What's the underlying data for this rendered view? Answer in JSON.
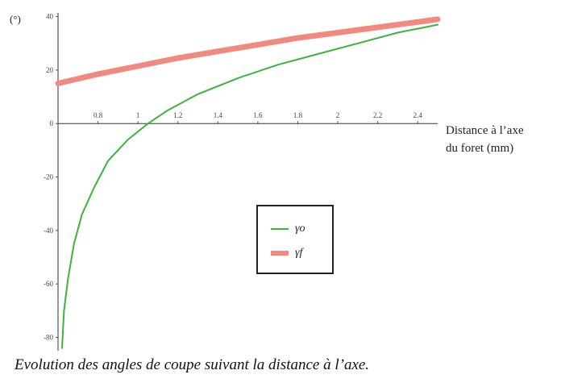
{
  "chart_data": {
    "type": "line",
    "ylabel": "(°)",
    "xlabel_lines": [
      "Distance à l’axe",
      "du foret (mm)"
    ],
    "caption": "Evolution des angles de coupe suivant la distance à l’axe.",
    "xlim": [
      0.6,
      2.5
    ],
    "ylim": [
      -85,
      42
    ],
    "x_ticks": [
      0.8,
      1,
      1.2,
      1.4,
      1.6,
      1.8,
      2,
      2.2,
      2.4
    ],
    "x_tick_labels": [
      "0.8",
      "1",
      "1.2",
      "1.4",
      "1.6",
      "1.8",
      "2",
      "2.2",
      "2.4"
    ],
    "y_ticks": [
      40,
      20,
      0,
      -20,
      -40,
      -60,
      -80
    ],
    "y_tick_labels": [
      "40",
      "20",
      "0",
      "-20",
      "-40",
      "-60",
      "-80"
    ],
    "series": [
      {
        "name": "γo",
        "color": "#3cb43c",
        "x": [
          0.62,
          0.63,
          0.65,
          0.68,
          0.72,
          0.78,
          0.85,
          0.95,
          1.05,
          1.15,
          1.3,
          1.5,
          1.7,
          1.9,
          2.1,
          2.3,
          2.5
        ],
        "y": [
          -84,
          -70,
          -58,
          -45,
          -34,
          -24,
          -14,
          -6,
          0,
          5,
          11,
          17,
          22,
          26,
          30,
          34,
          37
        ]
      },
      {
        "name": "γf",
        "color": "#f08a80",
        "x": [
          0.6,
          0.8,
          1.0,
          1.2,
          1.4,
          1.6,
          1.8,
          2.0,
          2.2,
          2.4,
          2.5
        ],
        "y": [
          15,
          18.5,
          21.5,
          24.5,
          27,
          29.5,
          32,
          34,
          36,
          38,
          39
        ]
      }
    ],
    "legend_position": "center"
  }
}
